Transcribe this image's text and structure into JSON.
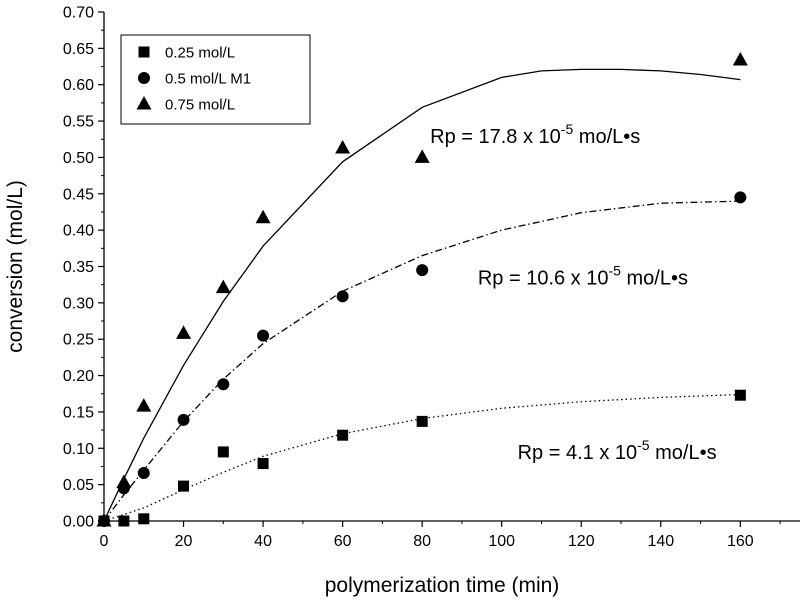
{
  "chart_data": {
    "type": "scatter",
    "title": "",
    "xlabel": "polymerization time (min)",
    "ylabel": "conversion (mol/L)",
    "xlim": [
      0,
      175
    ],
    "ylim": [
      0,
      0.7
    ],
    "x_ticks": [
      "0",
      "20",
      "40",
      "60",
      "80",
      "100",
      "120",
      "140",
      "160"
    ],
    "y_ticks": [
      "0.00",
      "0.05",
      "0.10",
      "0.15",
      "0.20",
      "0.25",
      "0.30",
      "0.35",
      "0.40",
      "0.45",
      "0.50",
      "0.55",
      "0.60",
      "0.65",
      "0.70"
    ],
    "grid": false,
    "legend_position": "top-left",
    "series": [
      {
        "name": "0.25 mol/L",
        "marker": "square",
        "fit_line": "dotted",
        "x": [
          0,
          5,
          10,
          20,
          30,
          40,
          60,
          80,
          160
        ],
        "y": [
          0.0,
          0.0,
          0.003,
          0.048,
          0.095,
          0.079,
          0.118,
          0.137,
          0.173
        ],
        "fit_x": [
          0,
          5,
          10,
          20,
          30,
          40,
          60,
          80,
          100,
          120,
          140,
          160
        ],
        "fit_y": [
          0.0,
          0.009,
          0.018,
          0.043,
          0.067,
          0.089,
          0.12,
          0.141,
          0.155,
          0.164,
          0.17,
          0.174
        ]
      },
      {
        "name": "0.5 mol/L M1",
        "marker": "circle",
        "fit_line": "dash-dot",
        "x": [
          0,
          5,
          10,
          20,
          30,
          40,
          60,
          80,
          160
        ],
        "y": [
          0.0,
          0.045,
          0.066,
          0.139,
          0.188,
          0.255,
          0.309,
          0.345,
          0.445
        ],
        "fit_x": [
          0,
          5,
          10,
          20,
          30,
          40,
          60,
          80,
          100,
          120,
          140,
          160
        ],
        "fit_y": [
          0.0,
          0.036,
          0.07,
          0.137,
          0.195,
          0.244,
          0.316,
          0.365,
          0.4,
          0.424,
          0.437,
          0.44
        ]
      },
      {
        "name": "0.75 mol/L",
        "marker": "triangle",
        "fit_line": "solid",
        "x": [
          0,
          5,
          10,
          20,
          30,
          40,
          60,
          80,
          160
        ],
        "y": [
          0.0,
          0.053,
          0.158,
          0.258,
          0.321,
          0.417,
          0.513,
          0.5,
          0.634
        ],
        "fit_x": [
          0,
          5,
          10,
          20,
          30,
          40,
          60,
          80,
          100,
          110,
          120,
          130,
          140,
          150,
          160
        ],
        "fit_y": [
          0.0,
          0.058,
          0.114,
          0.214,
          0.302,
          0.378,
          0.494,
          0.569,
          0.61,
          0.619,
          0.621,
          0.621,
          0.619,
          0.614,
          0.607
        ]
      }
    ],
    "annotations": [
      {
        "text": "Rp = 17.8 x 10",
        "sup": "-5",
        "tail": " mo/L•s",
        "x": 82,
        "y": 0.52
      },
      {
        "text": "Rp = 10.6 x 10",
        "sup": "-5",
        "tail": " mo/L•s",
        "x": 94,
        "y": 0.325
      },
      {
        "text": "Rp = 4.1 x 10",
        "sup": "-5",
        "tail": " mo/L•s",
        "x": 104,
        "y": 0.085
      }
    ]
  }
}
